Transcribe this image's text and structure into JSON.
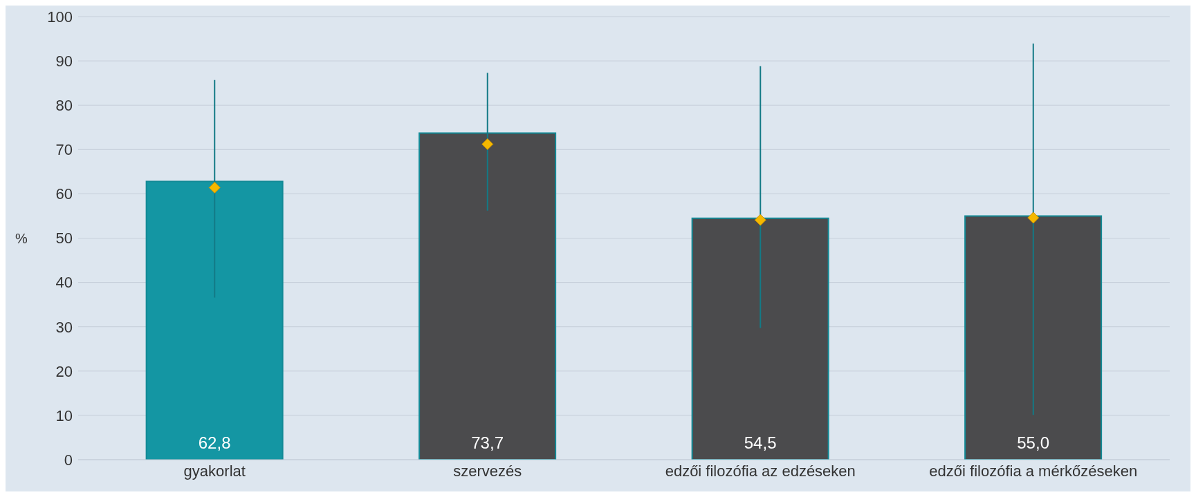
{
  "chart_data": {
    "type": "bar",
    "ylabel": "%",
    "categories": [
      "gyakorlat",
      "szervezés",
      "edzői filozófia az edzéseken",
      "edzői filozófia a mérkőzéseken"
    ],
    "series": [
      {
        "colors": [
          "#1496a3",
          "#4b4b4d",
          "#4b4b4d",
          "#4b4b4d"
        ],
        "values": [
          62.8,
          73.7,
          54.5,
          55.0
        ],
        "value_labels": [
          "62,8",
          "73,7",
          "54,5",
          "55,0"
        ]
      },
      {
        "type": "scatter",
        "color": "#f5b800",
        "marker": "diamond",
        "values": [
          61.4,
          71.2,
          54.1,
          54.6
        ],
        "errors": [
          [
            36.6,
            85.7
          ],
          [
            56.2,
            87.3
          ],
          [
            29.7,
            88.8
          ],
          [
            10.1,
            93.9
          ]
        ]
      }
    ],
    "ylim": [
      0,
      100
    ],
    "yticks": [
      0,
      10,
      20,
      30,
      40,
      50,
      60,
      70,
      80,
      90,
      100
    ],
    "grid": "y",
    "legend": false
  }
}
